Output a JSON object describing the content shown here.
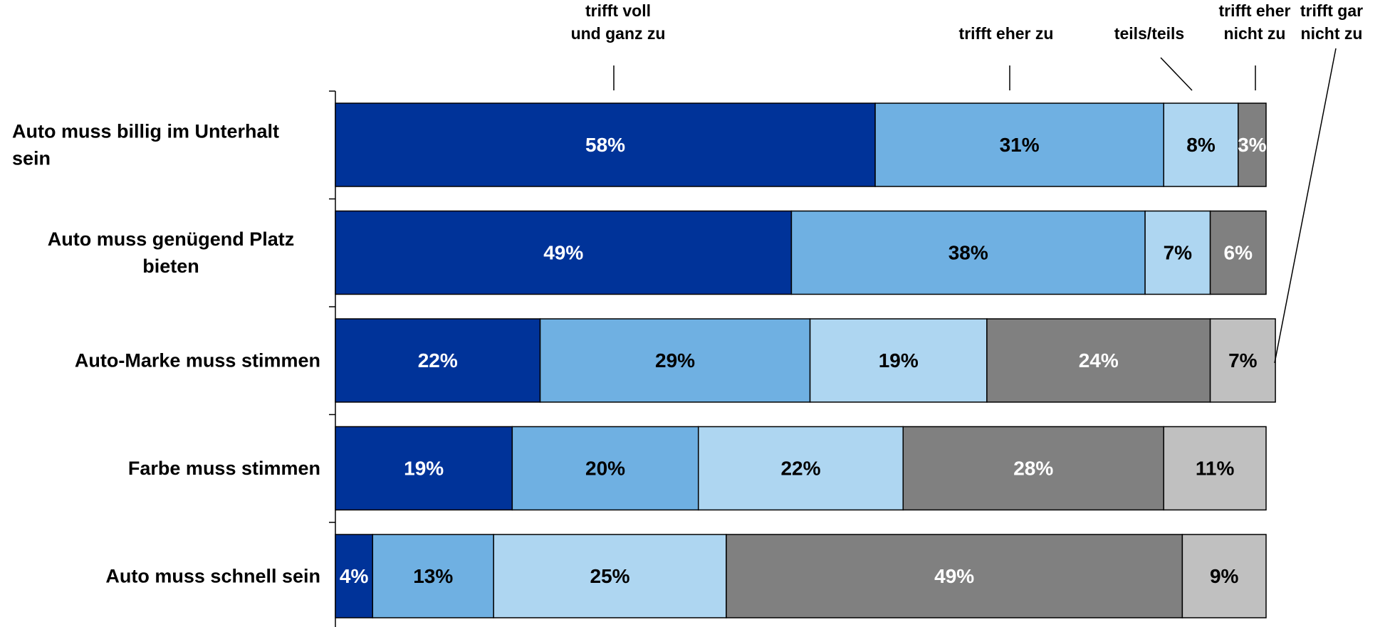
{
  "chart_data": {
    "type": "bar",
    "orientation": "horizontal",
    "stacked": true,
    "percent_stacked": true,
    "categories": [
      [
        "Auto muss billig im Unterhalt",
        "sein"
      ],
      [
        "Auto muss genügend Platz",
        "bieten"
      ],
      [
        "Auto-Marke muss stimmen"
      ],
      [
        "Farbe muss stimmen"
      ],
      [
        "Auto muss schnell sein"
      ]
    ],
    "category_align": [
      "left",
      "center",
      "right",
      "right",
      "right"
    ],
    "series": [
      {
        "name": [
          "trifft voll",
          "und ganz zu"
        ],
        "values": [
          58,
          49,
          22,
          19,
          4
        ],
        "color": "#003399",
        "label_color": "#ffffff"
      },
      {
        "name": [
          "trifft eher zu"
        ],
        "values": [
          31,
          38,
          29,
          20,
          13
        ],
        "color": "#6FB0E2",
        "label_color": "#000000"
      },
      {
        "name": [
          "teils/teils"
        ],
        "values": [
          8,
          7,
          19,
          22,
          25
        ],
        "color": "#AED6F1",
        "label_color": "#000000"
      },
      {
        "name": [
          "trifft eher",
          "nicht zu"
        ],
        "values": [
          3,
          6,
          24,
          28,
          49
        ],
        "color": "#808080",
        "label_color": "#ffffff"
      },
      {
        "name": [
          "trifft gar",
          "nicht zu"
        ],
        "values": [
          0,
          0,
          7,
          11,
          9
        ],
        "color": "#C0C0C0",
        "label_color": "#000000"
      }
    ],
    "value_suffix": "%",
    "xlim": [
      0,
      100
    ],
    "grid": false,
    "legend": "top, labels with leader lines to the first bar"
  }
}
